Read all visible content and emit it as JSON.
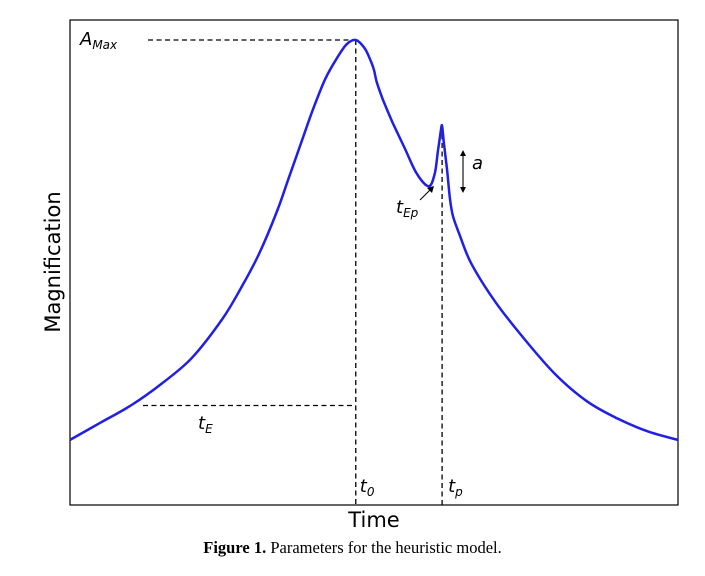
{
  "chart_data": {
    "type": "line",
    "title": "",
    "xlabel": "Time",
    "ylabel": "Magnification",
    "grid": false,
    "legend": "none",
    "series": [
      {
        "color": "#1f1fe6",
        "x": [
          0.0,
          0.05,
          0.1,
          0.15,
          0.2,
          0.25,
          0.28,
          0.31,
          0.34,
          0.36,
          0.38,
          0.4,
          0.42,
          0.44,
          0.455,
          0.47,
          0.485,
          0.495,
          0.5,
          0.505,
          0.515,
          0.53,
          0.55,
          0.57,
          0.59,
          0.6,
          0.605,
          0.61,
          0.612,
          0.615,
          0.62,
          0.625,
          0.63,
          0.64,
          0.66,
          0.7,
          0.75,
          0.8,
          0.85,
          0.9,
          0.95,
          1.0
        ],
        "y": [
          0.07,
          0.11,
          0.15,
          0.2,
          0.26,
          0.35,
          0.42,
          0.5,
          0.6,
          0.68,
          0.76,
          0.84,
          0.91,
          0.96,
          0.99,
          1.0,
          0.98,
          0.95,
          0.93,
          0.9,
          0.86,
          0.81,
          0.75,
          0.69,
          0.66,
          0.69,
          0.74,
          0.79,
          0.8,
          0.76,
          0.7,
          0.63,
          0.59,
          0.55,
          0.48,
          0.39,
          0.3,
          0.22,
          0.16,
          0.12,
          0.09,
          0.07
        ]
      }
    ],
    "annotations": {
      "a_max": "A",
      "a_max_sub": "Max",
      "t_e": "t",
      "t_e_sub": "E",
      "t_ep": "t",
      "t_ep_sub": "Ep",
      "a": "a",
      "t0": "t",
      "t0_sub": "0",
      "tp": "t",
      "tp_sub": "p"
    },
    "markers": {
      "t0_x": 0.47,
      "tp_x": 0.612,
      "tep_x": 0.59,
      "te_left_x": 0.12,
      "te_y": 0.15
    }
  },
  "caption": {
    "label": "Figure 1.",
    "text": " Parameters for the heuristic model."
  }
}
